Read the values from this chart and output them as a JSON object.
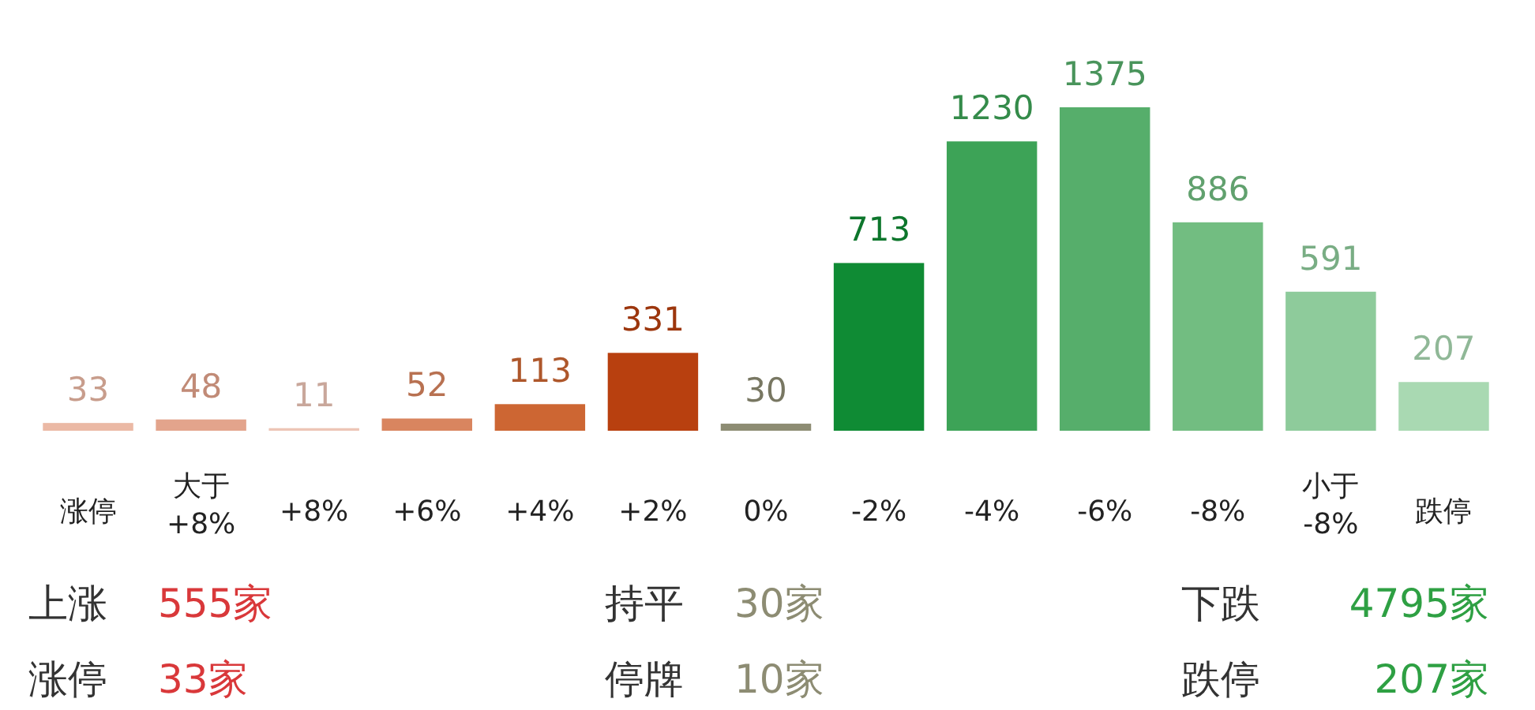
{
  "chart_data": {
    "type": "bar",
    "categories": [
      "涨停",
      "大于\n+8%",
      "+8%",
      "+6%",
      "+4%",
      "+2%",
      "0%",
      "-2%",
      "-4%",
      "-6%",
      "-8%",
      "小于\n-8%",
      "跌停"
    ],
    "values": [
      33,
      48,
      11,
      52,
      113,
      331,
      30,
      713,
      1230,
      1375,
      886,
      591,
      207
    ],
    "colors": [
      "#ebb9a5",
      "#e3a48c",
      "#edc5b6",
      "#d9855f",
      "#cd6633",
      "#b8400f",
      "#8d8c73",
      "#0f8b34",
      "#3da357",
      "#56ae6b",
      "#72bd81",
      "#8ecb9b",
      "#a9d9b2"
    ],
    "data_labels": true,
    "annotations": [
      "上涨",
      "555家",
      "持平",
      "30家",
      "下跌",
      "4795家",
      "涨停",
      "33家",
      "停牌",
      "10家",
      "跌停",
      "207家"
    ]
  }
}
